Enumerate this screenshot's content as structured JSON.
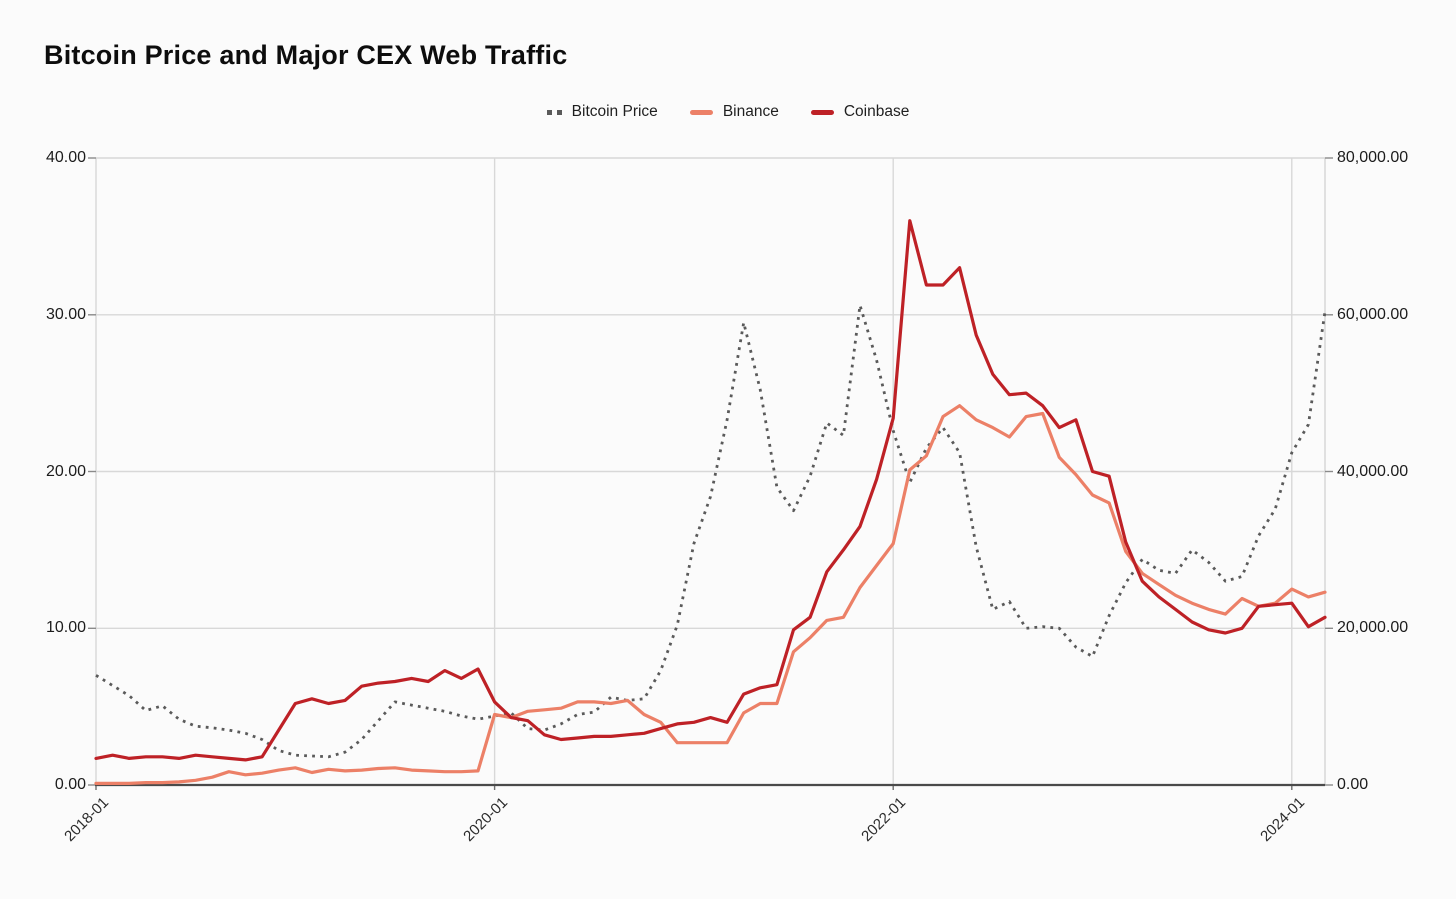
{
  "page": {
    "title": "Bitcoin Price and Major CEX Web Traffic"
  },
  "chart_data": {
    "type": "line",
    "title": "Bitcoin Price and Major CEX Web Traffic",
    "grid": true,
    "legend_position": "top",
    "x": [
      "2018-01",
      "2018-02",
      "2018-03",
      "2018-04",
      "2018-05",
      "2018-06",
      "2018-07",
      "2018-08",
      "2018-09",
      "2018-10",
      "2018-11",
      "2018-12",
      "2019-01",
      "2019-02",
      "2019-03",
      "2019-04",
      "2019-05",
      "2019-06",
      "2019-07",
      "2019-08",
      "2019-09",
      "2019-10",
      "2019-11",
      "2019-12",
      "2020-01",
      "2020-02",
      "2020-03",
      "2020-04",
      "2020-05",
      "2020-06",
      "2020-07",
      "2020-08",
      "2020-09",
      "2020-10",
      "2020-11",
      "2020-12",
      "2021-01",
      "2021-02",
      "2021-03",
      "2021-04",
      "2021-05",
      "2021-06",
      "2021-07",
      "2021-08",
      "2021-09",
      "2021-10",
      "2021-11",
      "2021-12",
      "2022-01",
      "2022-02",
      "2022-03",
      "2022-04",
      "2022-05",
      "2022-06",
      "2022-07",
      "2022-08",
      "2022-09",
      "2022-10",
      "2022-11",
      "2022-12",
      "2023-01",
      "2023-02",
      "2023-03",
      "2023-04",
      "2023-05",
      "2023-06",
      "2023-07",
      "2023-08",
      "2023-09",
      "2023-10",
      "2023-11",
      "2023-12",
      "2024-01",
      "2024-02",
      "2024-03"
    ],
    "x_tick_labels": [
      "2018-01",
      "2020-01",
      "2022-01",
      "2024-01"
    ],
    "left_axis": {
      "range": [
        0,
        40
      ],
      "ticks": [
        0,
        10,
        20,
        30,
        40
      ],
      "tick_labels": [
        "0.00",
        "10.00",
        "20.00",
        "30.00",
        "40.00"
      ]
    },
    "right_axis": {
      "range": [
        0,
        80000
      ],
      "ticks": [
        0,
        20000,
        40000,
        60000,
        80000
      ],
      "tick_labels": [
        "0.00",
        "20,000.00",
        "40,000.00",
        "60,000.00",
        "80,000.00"
      ]
    },
    "series": [
      {
        "name": "Bitcoin Price",
        "axis": "right",
        "line_style": "dotted",
        "color": "#5a5a5a",
        "values": [
          14000,
          12700,
          11400,
          9500,
          10100,
          8400,
          7500,
          7300,
          7000,
          6600,
          5800,
          4400,
          3800,
          3700,
          3600,
          4200,
          5800,
          8200,
          10600,
          10200,
          9800,
          9400,
          8800,
          8400,
          8800,
          9200,
          7200,
          7000,
          7800,
          9000,
          9300,
          11200,
          10800,
          11000,
          14600,
          20400,
          30800,
          36800,
          46600,
          59000,
          50400,
          38000,
          35000,
          39400,
          46200,
          44600,
          61200,
          54200,
          45200,
          38600,
          43000,
          45600,
          42400,
          30400,
          22400,
          23400,
          20000,
          20200,
          20000,
          17600,
          16400,
          21600,
          25800,
          28800,
          27400,
          27000,
          30000,
          28400,
          26000,
          26600,
          31800,
          35200,
          42400,
          46000,
          60400
        ]
      },
      {
        "name": "Binance",
        "axis": "left",
        "line_style": "solid",
        "color": "#ec8067",
        "values": [
          0.1,
          0.1,
          0.1,
          0.15,
          0.15,
          0.2,
          0.3,
          0.5,
          0.85,
          0.65,
          0.75,
          0.95,
          1.1,
          0.8,
          1.0,
          0.9,
          0.95,
          1.05,
          1.1,
          0.95,
          0.9,
          0.85,
          0.85,
          0.9,
          4.5,
          4.3,
          4.7,
          4.8,
          4.9,
          5.3,
          5.3,
          5.2,
          5.4,
          4.5,
          4.0,
          2.7,
          2.7,
          2.7,
          2.7,
          4.6,
          5.2,
          5.2,
          8.5,
          9.4,
          10.5,
          10.7,
          12.6,
          14.0,
          15.4,
          20.1,
          21.0,
          23.5,
          24.2,
          23.3,
          22.8,
          22.2,
          23.5,
          23.7,
          20.9,
          19.8,
          18.5,
          18.0,
          14.9,
          13.5,
          12.8,
          12.1,
          11.6,
          11.2,
          10.9,
          11.9,
          11.4,
          11.6,
          12.5,
          12.0,
          12.3
        ]
      },
      {
        "name": "Coinbase",
        "axis": "left",
        "line_style": "solid",
        "color": "#be2126",
        "values": [
          1.7,
          1.9,
          1.7,
          1.8,
          1.8,
          1.7,
          1.9,
          1.8,
          1.7,
          1.6,
          1.8,
          3.5,
          5.2,
          5.5,
          5.2,
          5.4,
          6.3,
          6.5,
          6.6,
          6.8,
          6.6,
          7.3,
          6.8,
          7.4,
          5.3,
          4.3,
          4.1,
          3.2,
          2.9,
          3.0,
          3.1,
          3.1,
          3.2,
          3.3,
          3.6,
          3.9,
          4.0,
          4.3,
          4.0,
          5.8,
          6.2,
          6.4,
          9.9,
          10.7,
          13.6,
          15.0,
          16.5,
          19.5,
          23.4,
          36.0,
          31.9,
          31.9,
          33.0,
          28.7,
          26.2,
          24.9,
          25.0,
          24.2,
          22.8,
          23.3,
          20.0,
          19.7,
          15.5,
          13.0,
          12.0,
          11.2,
          10.4,
          9.9,
          9.7,
          10.0,
          11.4,
          11.5,
          11.6,
          10.1,
          10.7
        ]
      }
    ]
  }
}
